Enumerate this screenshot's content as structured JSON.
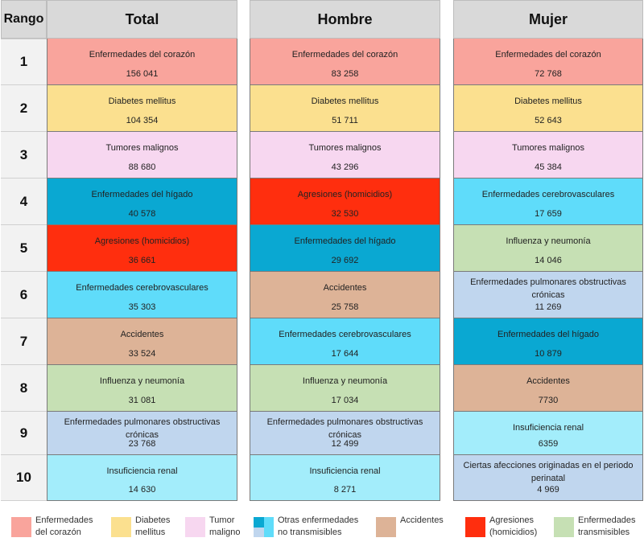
{
  "colors": {
    "corazon": "#f9a49c",
    "diabetes": "#fbe08f",
    "tumores": "#f7d7f0",
    "higado": "#0aa8d2",
    "agresiones": "#ff2e0e",
    "cerebro": "#5fdcfa",
    "accidentes": "#ddb397",
    "influenza": "#c6e0b4",
    "pulmonares": "#c0d6ee",
    "renal": "#a3edfb",
    "perinatal": "#c0d6ee"
  },
  "headers": {
    "rango": "Rango",
    "total": "Total",
    "hombre": "Hombre",
    "mujer": "Mujer"
  },
  "ranks": [
    "1",
    "2",
    "3",
    "4",
    "5",
    "6",
    "7",
    "8",
    "9",
    "10"
  ],
  "total": [
    {
      "name": "Enfermedades del corazón",
      "value": "156 041",
      "cat": "corazon"
    },
    {
      "name": "Diabetes mellitus",
      "value": "104 354",
      "cat": "diabetes"
    },
    {
      "name": "Tumores malignos",
      "value": "88 680",
      "cat": "tumores"
    },
    {
      "name": "Enfermedades del hígado",
      "value": "40 578",
      "cat": "higado"
    },
    {
      "name": "Agresiones (homicidios)",
      "value": "36 661",
      "cat": "agresiones"
    },
    {
      "name": "Enfermedades cerebrovasculares",
      "value": "35 303",
      "cat": "cerebro"
    },
    {
      "name": "Accidentes",
      "value": "33 524",
      "cat": "accidentes"
    },
    {
      "name": "Influenza y neumonía",
      "value": "31 081",
      "cat": "influenza"
    },
    {
      "name": "Enfermedades pulmonares obstructivas crónicas",
      "value": "23 768",
      "cat": "pulmonares"
    },
    {
      "name": "Insuficiencia renal",
      "value": "14 630",
      "cat": "renal"
    }
  ],
  "hombre": [
    {
      "name": "Enfermedades del corazón",
      "value": "83 258",
      "cat": "corazon"
    },
    {
      "name": "Diabetes mellitus",
      "value": "51 711",
      "cat": "diabetes"
    },
    {
      "name": "Tumores malignos",
      "value": "43 296",
      "cat": "tumores"
    },
    {
      "name": "Agresiones (homicidios)",
      "value": "32 530",
      "cat": "agresiones"
    },
    {
      "name": "Enfermedades del hígado",
      "value": "29 692",
      "cat": "higado"
    },
    {
      "name": "Accidentes",
      "value": "25 758",
      "cat": "accidentes"
    },
    {
      "name": "Enfermedades cerebrovasculares",
      "value": "17 644",
      "cat": "cerebro"
    },
    {
      "name": "Influenza y neumonía",
      "value": "17 034",
      "cat": "influenza"
    },
    {
      "name": "Enfermedades pulmonares obstructivas crónicas",
      "value": "12 499",
      "cat": "pulmonares"
    },
    {
      "name": "Insuficiencia renal",
      "value": "8 271",
      "cat": "renal"
    }
  ],
  "mujer": [
    {
      "name": "Enfermedades del corazón",
      "value": "72 768",
      "cat": "corazon"
    },
    {
      "name": "Diabetes mellitus",
      "value": "52 643",
      "cat": "diabetes"
    },
    {
      "name": "Tumores malignos",
      "value": "45 384",
      "cat": "tumores"
    },
    {
      "name": "Enfermedades cerebrovasculares",
      "value": "17 659",
      "cat": "cerebro"
    },
    {
      "name": "Influenza y neumonía",
      "value": "14 046",
      "cat": "influenza"
    },
    {
      "name": "Enfermedades pulmonares obstructivas crónicas",
      "value": "11 269",
      "cat": "pulmonares"
    },
    {
      "name": "Enfermedades del hígado",
      "value": "10 879",
      "cat": "higado"
    },
    {
      "name": "Accidentes",
      "value": "7730",
      "cat": "accidentes"
    },
    {
      "name": "Insuficiencia renal",
      "value": "6359",
      "cat": "renal"
    },
    {
      "name": "Ciertas afecciones originadas en el periodo perinatal",
      "value": "4 969",
      "cat": "perinatal"
    }
  ],
  "legend": [
    {
      "label": "Enfermedades\ndel corazón",
      "color": "#f9a49c"
    },
    {
      "label": "Diabetes\nmellitus",
      "color": "#fbe08f"
    },
    {
      "label": "Tumor\nmaligno",
      "color": "#f7d7f0"
    },
    {
      "label": "Otras enfermedades\nno transmisibles",
      "colors": [
        "#0aa8d2",
        "#5fdcfa",
        "#c0d6ee",
        "#5fdcfa"
      ]
    },
    {
      "label": "Accidentes",
      "color": "#ddb397"
    },
    {
      "label": "Agresiones\n(homicidios)",
      "color": "#ff2e0e"
    },
    {
      "label": "Enfermedades\ntransmisibles",
      "color": "#c6e0b4"
    }
  ]
}
